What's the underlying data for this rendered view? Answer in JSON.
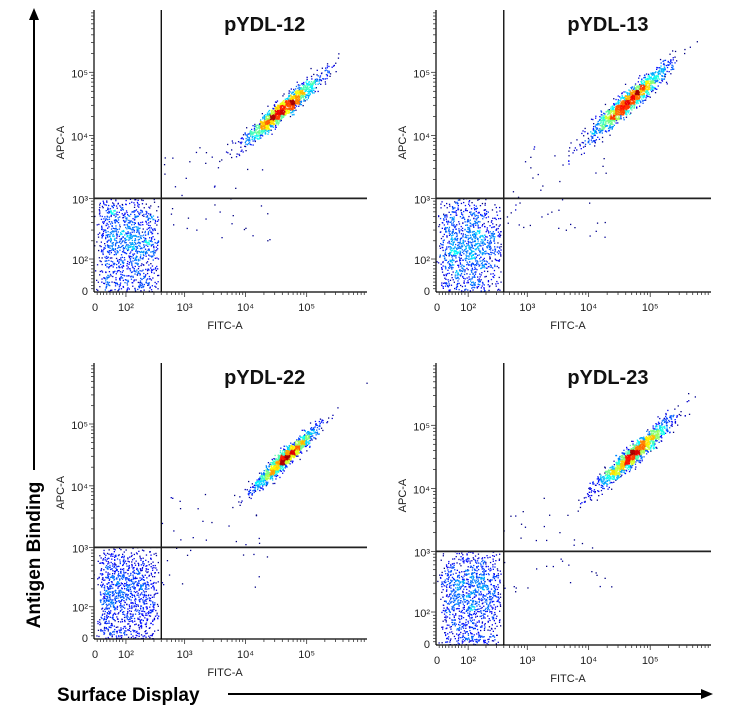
{
  "axis_labels": {
    "big_y": "Antigen Binding",
    "big_x": "Surface Display"
  },
  "chart_data": [
    {
      "type": "scatter",
      "title": "pYDL-12",
      "xlabel": "FITC-A",
      "ylabel": "APC-A",
      "x_scale": "biexponential",
      "y_scale": "biexponential",
      "x_ticks": [
        "0",
        "10²",
        "10³",
        "10⁴",
        "10⁵"
      ],
      "y_ticks": [
        "0",
        "10²",
        "10³",
        "10⁴",
        "10⁵"
      ],
      "xlim": [
        0,
        1000000
      ],
      "ylim": [
        0,
        1000000
      ],
      "grid": false,
      "gates": {
        "fitc": 400,
        "apc": 1000
      },
      "populations": [
        {
          "fitc_center": 110,
          "apc_center": 200,
          "fitc_spread_decades": 0.35,
          "apc_spread_decades": 0.4,
          "events": 1100
        },
        {
          "fitc_center": 40000,
          "apc_center": 25000,
          "fitc_spread_decades": 0.3,
          "apc_spread_decades": 0.08,
          "apc_slope": 0.82,
          "events": 1500
        }
      ],
      "outlier_events": 40
    },
    {
      "type": "scatter",
      "title": "pYDL-13",
      "xlabel": "FITC-A",
      "ylabel": "APC-A",
      "x_scale": "biexponential",
      "y_scale": "biexponential",
      "x_ticks": [
        "0",
        "10²",
        "10³",
        "10⁴",
        "10⁵"
      ],
      "y_ticks": [
        "0",
        "10²",
        "10³",
        "10⁴",
        "10⁵"
      ],
      "xlim": [
        0,
        1000000
      ],
      "ylim": [
        0,
        1000000
      ],
      "grid": false,
      "gates": {
        "fitc": 400,
        "apc": 1000
      },
      "populations": [
        {
          "fitc_center": 110,
          "apc_center": 180,
          "fitc_spread_decades": 0.35,
          "apc_spread_decades": 0.4,
          "events": 1100
        },
        {
          "fitc_center": 45000,
          "apc_center": 35000,
          "fitc_spread_decades": 0.32,
          "apc_spread_decades": 0.09,
          "apc_slope": 0.85,
          "events": 1500
        }
      ],
      "outlier_events": 45
    },
    {
      "type": "scatter",
      "title": "pYDL-22",
      "xlabel": "FITC-A",
      "ylabel": "APC-A",
      "x_scale": "biexponential",
      "y_scale": "biexponential",
      "x_ticks": [
        "0",
        "10²",
        "10³",
        "10⁴",
        "10⁵"
      ],
      "y_ticks": [
        "0",
        "10²",
        "10³",
        "10⁴",
        "10⁵"
      ],
      "xlim": [
        0,
        1000000
      ],
      "ylim": [
        0,
        1000000
      ],
      "grid": false,
      "gates": {
        "fitc": 400,
        "apc": 1000
      },
      "populations": [
        {
          "fitc_center": 100,
          "apc_center": 180,
          "fitc_spread_decades": 0.35,
          "apc_spread_decades": 0.4,
          "events": 1100
        },
        {
          "fitc_center": 45000,
          "apc_center": 28000,
          "fitc_spread_decades": 0.25,
          "apc_spread_decades": 0.07,
          "apc_slope": 0.9,
          "events": 1500
        }
      ],
      "outlier_events": 35
    },
    {
      "type": "scatter",
      "title": "pYDL-23",
      "xlabel": "FITC-A",
      "ylabel": "APC-A",
      "x_scale": "biexponential",
      "y_scale": "biexponential",
      "x_ticks": [
        "0",
        "10²",
        "10³",
        "10⁴",
        "10⁵"
      ],
      "y_ticks": [
        "0",
        "10²",
        "10³",
        "10⁴",
        "10⁵"
      ],
      "xlim": [
        0,
        1000000
      ],
      "ylim": [
        0,
        1000000
      ],
      "grid": false,
      "gates": {
        "fitc": 400,
        "apc": 1000
      },
      "populations": [
        {
          "fitc_center": 120,
          "apc_center": 200,
          "fitc_spread_decades": 0.35,
          "apc_spread_decades": 0.4,
          "events": 1100
        },
        {
          "fitc_center": 55000,
          "apc_center": 35000,
          "fitc_spread_decades": 0.3,
          "apc_spread_decades": 0.08,
          "apc_slope": 0.85,
          "events": 1500
        }
      ],
      "outlier_events": 40
    }
  ],
  "colors": {
    "density_low": "#0000ff",
    "density_mid": "#00ff00",
    "density_high": "#ff0000",
    "axis": "#000000"
  }
}
